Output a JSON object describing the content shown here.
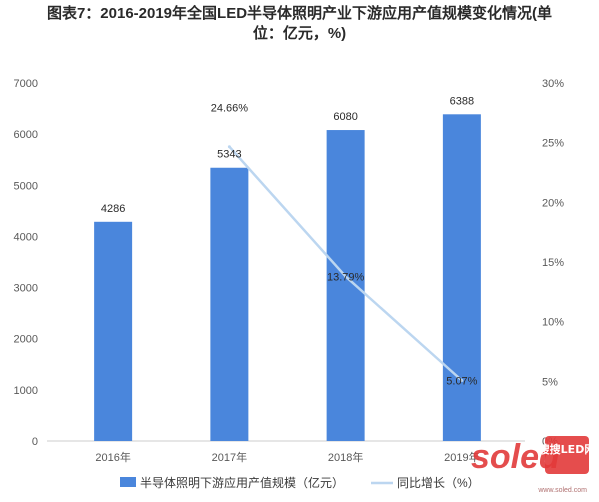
{
  "title_line1": "图表7：2016-2019年全国LED半导体照明产业下游应用产值规模变化情况(单",
  "title_line2": "位：亿元，%)",
  "colors": {
    "bar": "#4a86dc",
    "line": "#bcd6f0",
    "axis": "#cccccc"
  },
  "watermark": {
    "site": "soled",
    "brand": "搜搜LED网",
    "url": "www.soled.com"
  },
  "chart_data": {
    "type": "bar",
    "categories": [
      "2016年",
      "2017年",
      "2018年",
      "2019年"
    ],
    "series": [
      {
        "name": "半导体照明下游应用产值规模（亿元）",
        "type": "bar",
        "axis": "left",
        "values": [
          4286,
          5343,
          6080,
          6388
        ],
        "labels": [
          "4286",
          "5343",
          "6080",
          "6388"
        ]
      },
      {
        "name": "同比增长（%）",
        "type": "line",
        "axis": "right",
        "values": [
          null,
          24.66,
          13.79,
          5.07
        ],
        "labels": [
          "",
          "24.66%",
          "13.79%",
          "5.07%"
        ]
      }
    ],
    "y_left": {
      "min": 0,
      "max": 7000,
      "step": 1000,
      "ticks": [
        "0",
        "1000",
        "2000",
        "3000",
        "4000",
        "5000",
        "6000",
        "7000"
      ]
    },
    "y_right": {
      "min": 0,
      "max": 30,
      "step": 5,
      "ticks": [
        "0%",
        "5%",
        "10%",
        "15%",
        "20%",
        "25%",
        "30%"
      ]
    },
    "legend_position": "bottom"
  }
}
